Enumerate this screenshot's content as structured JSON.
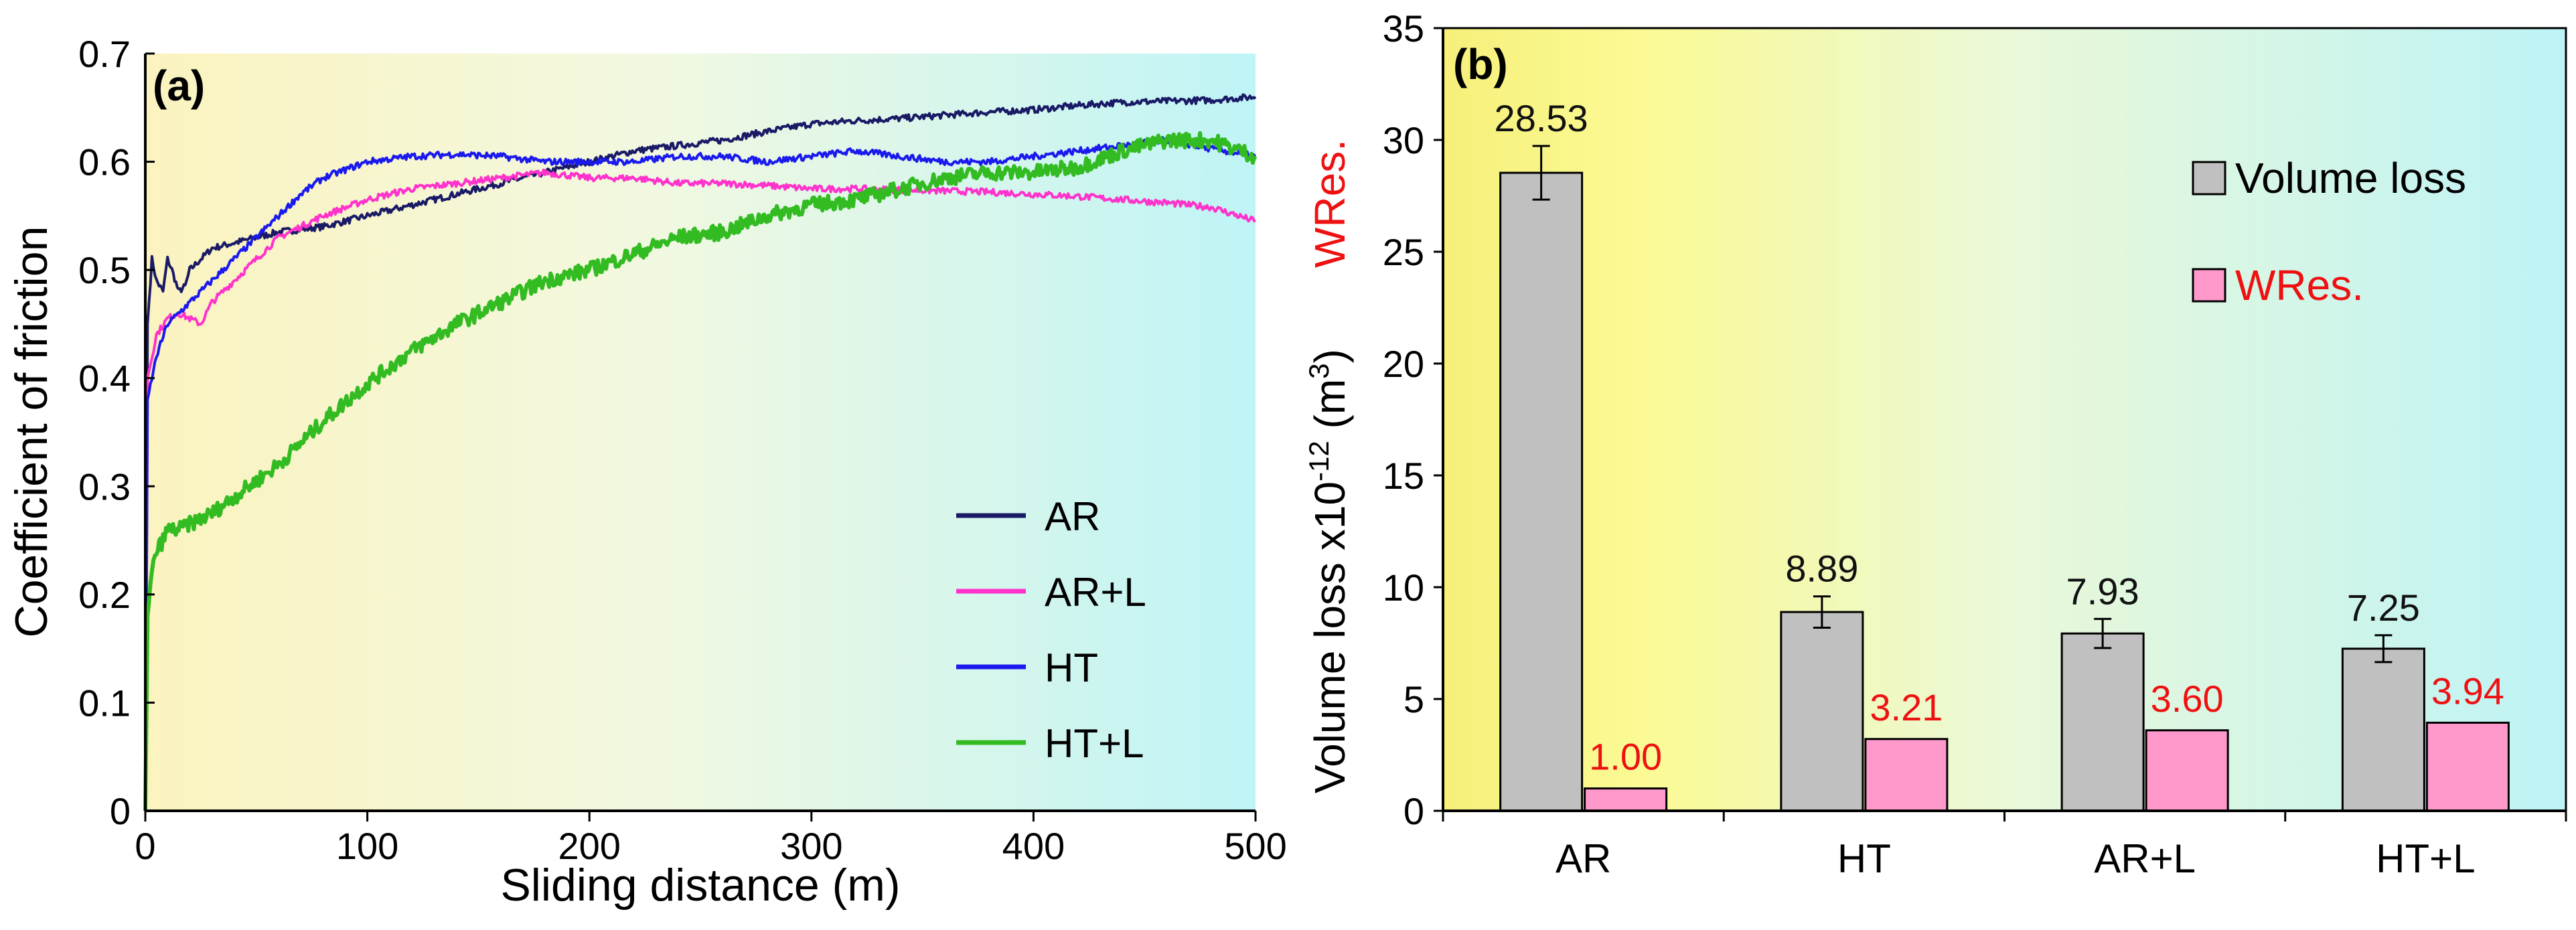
{
  "chart_data": [
    {
      "panel_label": "(a)",
      "type": "line",
      "title": "",
      "xlabel": "Sliding distance (m)",
      "ylabel": "Coefficient of friction",
      "xlim": [
        0,
        500
      ],
      "ylim": [
        0,
        0.7
      ],
      "xticks": [
        "0",
        "100",
        "200",
        "300",
        "400",
        "500"
      ],
      "yticks": [
        "0",
        "0.1",
        "0.2",
        "0.3",
        "0.4",
        "0.5",
        "0.6",
        "0.7"
      ],
      "legend_position": "bottom-right",
      "series": [
        {
          "name": "AR",
          "color": "#1a1a66",
          "x": [
            0,
            1,
            3,
            5,
            8,
            10,
            12,
            15,
            18,
            20,
            25,
            30,
            40,
            50,
            60,
            80,
            100,
            120,
            140,
            160,
            180,
            200,
            220,
            240,
            260,
            280,
            300,
            320,
            340,
            360,
            380,
            400,
            420,
            440,
            460,
            480,
            500
          ],
          "y": [
            0,
            0.45,
            0.51,
            0.49,
            0.48,
            0.51,
            0.5,
            0.48,
            0.485,
            0.5,
            0.51,
            0.52,
            0.525,
            0.53,
            0.535,
            0.54,
            0.55,
            0.56,
            0.57,
            0.58,
            0.59,
            0.6,
            0.61,
            0.615,
            0.62,
            0.628,
            0.635,
            0.638,
            0.64,
            0.643,
            0.646,
            0.648,
            0.652,
            0.655,
            0.656,
            0.657,
            0.66
          ]
        },
        {
          "name": "AR+L",
          "color": "#ff33cc",
          "x": [
            0,
            1,
            3,
            5,
            10,
            15,
            20,
            25,
            30,
            40,
            50,
            60,
            80,
            100,
            120,
            140,
            160,
            180,
            200,
            220,
            240,
            260,
            280,
            300,
            320,
            340,
            360,
            380,
            400,
            420,
            440,
            460,
            480,
            500
          ],
          "y": [
            0,
            0.4,
            0.42,
            0.44,
            0.455,
            0.46,
            0.455,
            0.45,
            0.47,
            0.49,
            0.51,
            0.53,
            0.55,
            0.565,
            0.575,
            0.58,
            0.585,
            0.59,
            0.585,
            0.585,
            0.58,
            0.58,
            0.578,
            0.575,
            0.575,
            0.574,
            0.573,
            0.572,
            0.57,
            0.568,
            0.565,
            0.562,
            0.558,
            0.545
          ]
        },
        {
          "name": "HT",
          "color": "#1a1aee",
          "x": [
            0,
            1,
            3,
            5,
            10,
            15,
            20,
            30,
            40,
            50,
            60,
            70,
            80,
            100,
            120,
            140,
            160,
            180,
            200,
            220,
            240,
            260,
            280,
            300,
            320,
            340,
            360,
            380,
            400,
            420,
            440,
            460,
            480,
            500
          ],
          "y": [
            0,
            0.38,
            0.4,
            0.42,
            0.45,
            0.46,
            0.47,
            0.49,
            0.51,
            0.53,
            0.55,
            0.57,
            0.585,
            0.6,
            0.605,
            0.607,
            0.605,
            0.6,
            0.6,
            0.6,
            0.605,
            0.605,
            0.6,
            0.605,
            0.61,
            0.605,
            0.6,
            0.6,
            0.605,
            0.61,
            0.615,
            0.62,
            0.612,
            0.605
          ]
        },
        {
          "name": "HT+L",
          "color": "#33bb22",
          "x": [
            0,
            1,
            3,
            5,
            8,
            10,
            15,
            20,
            30,
            40,
            50,
            60,
            80,
            100,
            120,
            140,
            160,
            180,
            200,
            220,
            240,
            260,
            280,
            300,
            320,
            340,
            360,
            380,
            400,
            420,
            440,
            460,
            480,
            500
          ],
          "y": [
            0,
            0.18,
            0.22,
            0.24,
            0.25,
            0.26,
            0.26,
            0.265,
            0.275,
            0.29,
            0.305,
            0.32,
            0.36,
            0.395,
            0.425,
            0.45,
            0.47,
            0.49,
            0.5,
            0.515,
            0.53,
            0.535,
            0.55,
            0.56,
            0.565,
            0.575,
            0.585,
            0.59,
            0.59,
            0.595,
            0.61,
            0.62,
            0.62,
            0.605
          ]
        }
      ]
    },
    {
      "panel_label": "(b)",
      "type": "bar",
      "title": "",
      "xlabel": "",
      "ylabel_prefix": "Volume loss x10",
      "ylabel_exponent": "-12",
      "ylabel_unit_open": " (m",
      "ylabel_unit_exponent": "3",
      "ylabel_unit_close": ")",
      "ylabel_secondary": "WRes.",
      "ylim": [
        0,
        35
      ],
      "yticks": [
        "0",
        "5",
        "10",
        "15",
        "20",
        "25",
        "30",
        "35"
      ],
      "categories": [
        "AR",
        "HT",
        "AR+L",
        "HT+L"
      ],
      "legend_position": "top-right",
      "series": [
        {
          "name": "Volume loss",
          "color": "#c0c0c0",
          "label_color": "#111111",
          "values": [
            28.53,
            8.89,
            7.93,
            7.25
          ],
          "labels": [
            "28.53",
            "8.89",
            "7.93",
            "7.25"
          ],
          "errors": [
            1.2,
            0.7,
            0.65,
            0.6
          ]
        },
        {
          "name": "WRes.",
          "color": "#ff99cc",
          "label_color": "#ee1111",
          "values": [
            1.0,
            3.21,
            3.6,
            3.94
          ],
          "labels": [
            "1.00",
            "3.21",
            "3.60",
            "3.94"
          ]
        }
      ]
    }
  ]
}
